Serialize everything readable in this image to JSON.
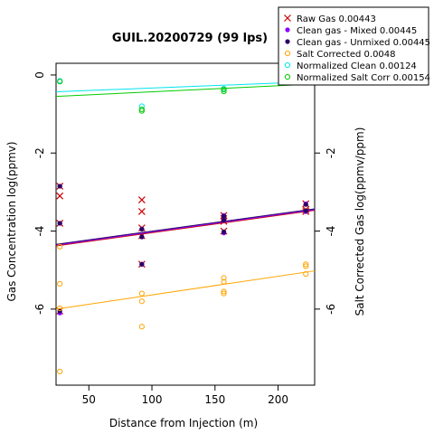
{
  "chart_data": {
    "type": "scatter",
    "title": "GUIL.20200729 (99 lps)",
    "xlabel": "Distance from Injection (m)",
    "ylabel": "Gas Concentration log(ppmv)",
    "ylabel_right": "Salt Corrected Gas log(ppmv/ppm)",
    "xlim": [
      24,
      229
    ],
    "ylim": [
      -7.95,
      0.3
    ],
    "x_ticks": [
      50,
      100,
      150,
      200
    ],
    "y_ticks": [
      0,
      -2,
      -4,
      -6
    ],
    "y_ticks_right": [
      -2,
      -4,
      -6
    ],
    "grid": false,
    "legend_position": "top-right",
    "series": [
      {
        "name": "Raw Gas 0.00443",
        "marker": "x",
        "color": "#cc0000",
        "points": [
          [
            27,
            -2.85
          ],
          [
            27,
            -3.1
          ],
          [
            27,
            -3.8
          ],
          [
            27,
            -6.05
          ],
          [
            92,
            -3.2
          ],
          [
            92,
            -3.5
          ],
          [
            92,
            -3.92
          ],
          [
            92,
            -4.12
          ],
          [
            92,
            -4.85
          ],
          [
            157,
            -3.6
          ],
          [
            157,
            -3.68
          ],
          [
            157,
            -3.75
          ],
          [
            157,
            -4.0
          ],
          [
            222,
            -3.3
          ],
          [
            222,
            -3.45
          ],
          [
            222,
            -3.5
          ]
        ],
        "fit": {
          "x0": 24,
          "y0": -4.38,
          "x1": 229,
          "y1": -3.47
        }
      },
      {
        "name": "Clean gas - Mixed 0.00445",
        "marker": "dot",
        "color": "#8b00ff",
        "points": [
          [
            27,
            -2.85
          ],
          [
            27,
            -3.8
          ],
          [
            27,
            -6.1
          ],
          [
            92,
            -3.95
          ],
          [
            92,
            -4.15
          ],
          [
            92,
            -4.85
          ],
          [
            157,
            -3.6
          ],
          [
            157,
            -3.7
          ],
          [
            157,
            -4.05
          ],
          [
            222,
            -3.3
          ],
          [
            222,
            -3.5
          ]
        ],
        "fit": {
          "x0": 24,
          "y0": -4.36,
          "x1": 229,
          "y1": -3.45
        }
      },
      {
        "name": "Clean gas - Unmixed 0.00445",
        "marker": "dot",
        "color": "#2a0066",
        "points": [
          [
            27,
            -2.85
          ],
          [
            27,
            -3.8
          ],
          [
            27,
            -6.05
          ],
          [
            92,
            -3.95
          ],
          [
            92,
            -4.15
          ],
          [
            92,
            -4.85
          ],
          [
            157,
            -3.62
          ],
          [
            157,
            -3.72
          ],
          [
            157,
            -4.02
          ],
          [
            222,
            -3.32
          ],
          [
            222,
            -3.48
          ]
        ],
        "fit": {
          "x0": 24,
          "y0": -4.34,
          "x1": 229,
          "y1": -3.43
        }
      },
      {
        "name": "Salt Corrected 0.0048",
        "marker": "circle",
        "color": "#ffa500",
        "points": [
          [
            27,
            -4.4
          ],
          [
            27,
            -5.35
          ],
          [
            27,
            -5.98
          ],
          [
            27,
            -7.6
          ],
          [
            92,
            -5.6
          ],
          [
            92,
            -5.8
          ],
          [
            92,
            -6.45
          ],
          [
            157,
            -5.2
          ],
          [
            157,
            -5.3
          ],
          [
            157,
            -5.55
          ],
          [
            157,
            -5.6
          ],
          [
            222,
            -4.85
          ],
          [
            222,
            -4.9
          ],
          [
            222,
            -5.1
          ]
        ],
        "fit": {
          "x0": 24,
          "y0": -6.0,
          "x1": 229,
          "y1": -5.02
        }
      },
      {
        "name": "Normalized Clean 0.00124",
        "marker": "circle",
        "color": "#00e5ee",
        "points": [
          [
            27,
            -0.15
          ],
          [
            92,
            -0.8
          ],
          [
            157,
            -0.35
          ],
          [
            222,
            -0.15
          ]
        ],
        "fit": {
          "x0": 24,
          "y0": -0.43,
          "x1": 229,
          "y1": -0.17
        }
      },
      {
        "name": "Normalized Salt Corr 0.00154",
        "marker": "circle",
        "color": "#00cc00",
        "points": [
          [
            27,
            -0.17
          ],
          [
            92,
            -0.88
          ],
          [
            92,
            -0.92
          ],
          [
            157,
            -0.37
          ],
          [
            157,
            -0.42
          ],
          [
            222,
            -0.2
          ]
        ],
        "fit": {
          "x0": 24,
          "y0": -0.55,
          "x1": 229,
          "y1": -0.23
        }
      }
    ]
  }
}
